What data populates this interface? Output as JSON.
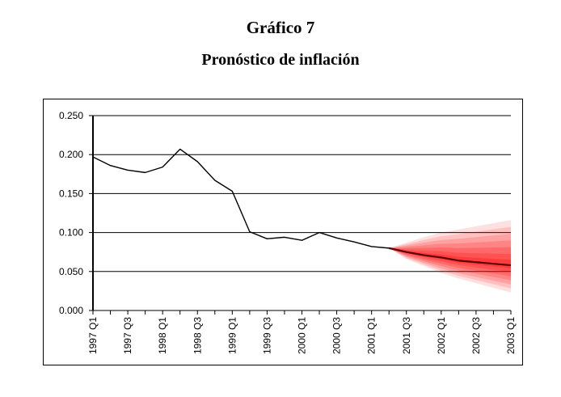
{
  "figure": {
    "title": "Gráfico 7",
    "subtitle": "Pronóstico de inflación"
  },
  "colors": {
    "line": "#000000",
    "fan": "#ff0000",
    "grid": "#000000"
  },
  "chart_data": {
    "type": "line",
    "title": "Pronóstico de inflación",
    "xlabel": "",
    "ylabel": "",
    "ylim": [
      0,
      0.25
    ],
    "yticks": [
      "0.000",
      "0.050",
      "0.100",
      "0.150",
      "0.200",
      "0.250"
    ],
    "grid": "horizontal",
    "legend": "none",
    "categories": [
      "1997 Q1",
      "1997 Q2",
      "1997 Q3",
      "1997 Q4",
      "1998 Q1",
      "1998 Q2",
      "1998 Q3",
      "1998 Q4",
      "1999 Q1",
      "1999 Q2",
      "1999 Q3",
      "1999 Q4",
      "2000 Q1",
      "2000 Q2",
      "2000 Q3",
      "2000 Q4",
      "2001 Q1",
      "2001 Q2",
      "2001 Q3",
      "2001 Q4",
      "2002 Q1",
      "2002 Q2",
      "2002 Q3",
      "2002 Q4",
      "2003 Q1"
    ],
    "tick_labels": [
      "1997 Q1",
      "1997 Q3",
      "1998 Q1",
      "1998 Q3",
      "1999 Q1",
      "1999 Q3",
      "2000 Q1",
      "2000 Q3",
      "2001 Q1",
      "2001 Q3",
      "2002 Q1",
      "2002 Q3",
      "2003 Q1"
    ],
    "series": [
      {
        "values": [
          0.197,
          0.186,
          0.18,
          0.177,
          0.184,
          0.207,
          0.191,
          0.167,
          0.153,
          0.101,
          0.092,
          0.094,
          0.09,
          0.1,
          0.093,
          0.088,
          0.082,
          0.08,
          0.075,
          0.071,
          0.068,
          0.064,
          0.062,
          0.06,
          0.058
        ]
      }
    ],
    "forecast_fan": {
      "start": "2001 Q2",
      "center": [
        0.08,
        0.075,
        0.071,
        0.068,
        0.064,
        0.062,
        0.06,
        0.058
      ],
      "upper": [
        0.08,
        0.087,
        0.094,
        0.1,
        0.104,
        0.108,
        0.112,
        0.116
      ],
      "lower": [
        0.08,
        0.066,
        0.057,
        0.048,
        0.041,
        0.035,
        0.029,
        0.023
      ]
    }
  }
}
